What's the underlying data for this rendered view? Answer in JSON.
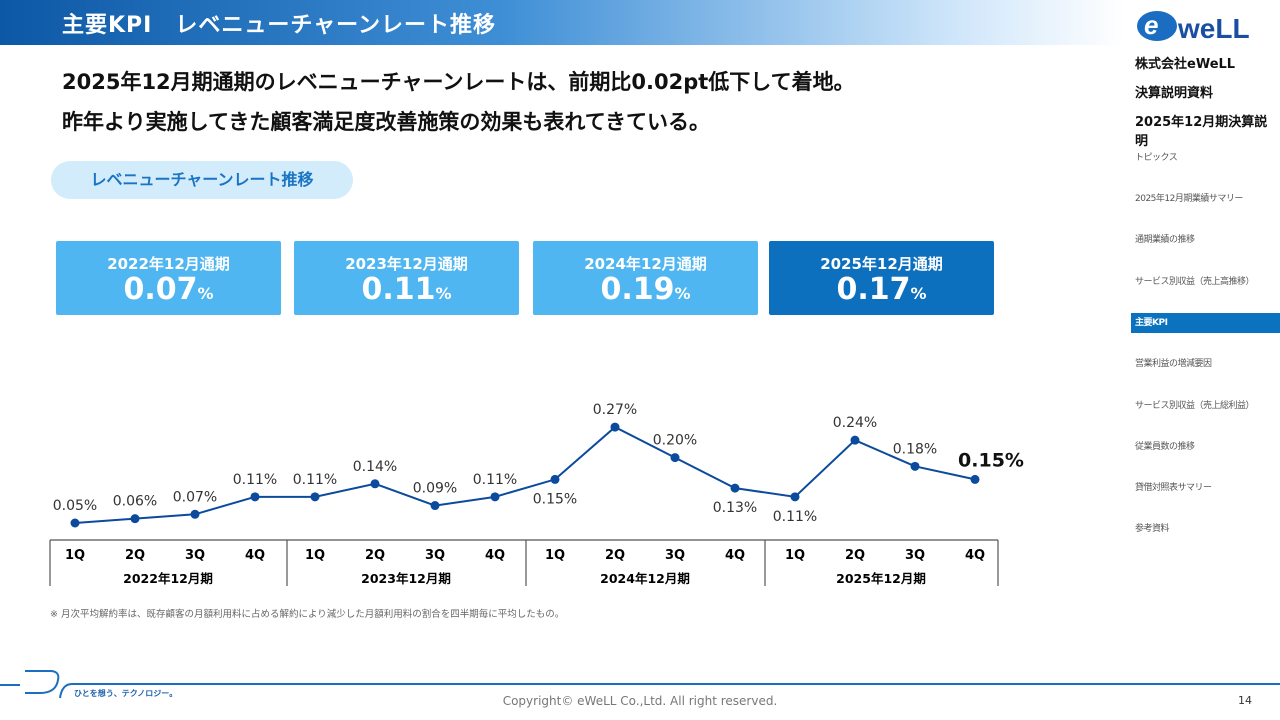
{
  "header": {
    "title": "主要KPI　レベニューチャーンレート推移"
  },
  "lead": [
    "2025年12月期通期のレベニューチャーンレートは、前期比0.02pt低下して着地。",
    "昨年より実施してきた顧客満足度改善施策の効果も表れてきている。"
  ],
  "section_pill": "レベニューチャーンレート推移",
  "cards": [
    {
      "title": "2022年12月通期",
      "value": "0.07",
      "unit": "%"
    },
    {
      "title": "2023年12月通期",
      "value": "0.11",
      "unit": "%"
    },
    {
      "title": "2024年12月通期",
      "value": "0.19",
      "unit": "%"
    },
    {
      "title": "2025年12月通期",
      "value": "0.17",
      "unit": "%"
    }
  ],
  "colors": {
    "card": "#4fb6f1",
    "card_current": "#0c70bf",
    "line": "#0b4a9c",
    "accent": "#0a72bf"
  },
  "chart_data": {
    "type": "line",
    "categories": [
      "1Q",
      "2Q",
      "3Q",
      "4Q",
      "1Q",
      "2Q",
      "3Q",
      "4Q",
      "1Q",
      "2Q",
      "3Q",
      "4Q",
      "1Q",
      "2Q",
      "3Q",
      "4Q"
    ],
    "groups": [
      "2022年12月期",
      "2023年12月期",
      "2024年12月期",
      "2025年12月期"
    ],
    "values": [
      0.05,
      0.06,
      0.07,
      0.11,
      0.11,
      0.14,
      0.09,
      0.11,
      0.15,
      0.27,
      0.2,
      0.13,
      0.11,
      0.24,
      0.18,
      0.15
    ],
    "labels": [
      "0.05%",
      "0.06%",
      "0.07%",
      "0.11%",
      "0.11%",
      "0.14%",
      "0.09%",
      "0.11%",
      "0.15%",
      "0.27%",
      "0.20%",
      "0.13%",
      "0.11%",
      "0.24%",
      "0.18%",
      "0.15%"
    ],
    "grid": false
  },
  "footnote": "※ 月次平均解約率は、既存顧客の月額利用料に占める解約により減少した月額利用料の割合を四半期毎に平均したもの。",
  "sidebar": {
    "logo": "eWeLL",
    "company": "株式会社eWeLL",
    "doc": "決算説明資料",
    "period": "2025年12月期決算説明",
    "items": [
      "トピックス",
      "2025年12月期業績サマリー",
      "通期業績の推移",
      "サービス別収益（売上高推移）",
      "主要KPI",
      "営業利益の増減要因",
      "サービス別収益（売上総利益）",
      "従業員数の推移",
      "貸借対照表サマリー",
      "参考資料"
    ],
    "active": 4
  },
  "tagline": "ひとを想う、テクノロジー。",
  "copyright": "Copyright© eWeLL Co.,Ltd. All right reserved.",
  "page": "14"
}
